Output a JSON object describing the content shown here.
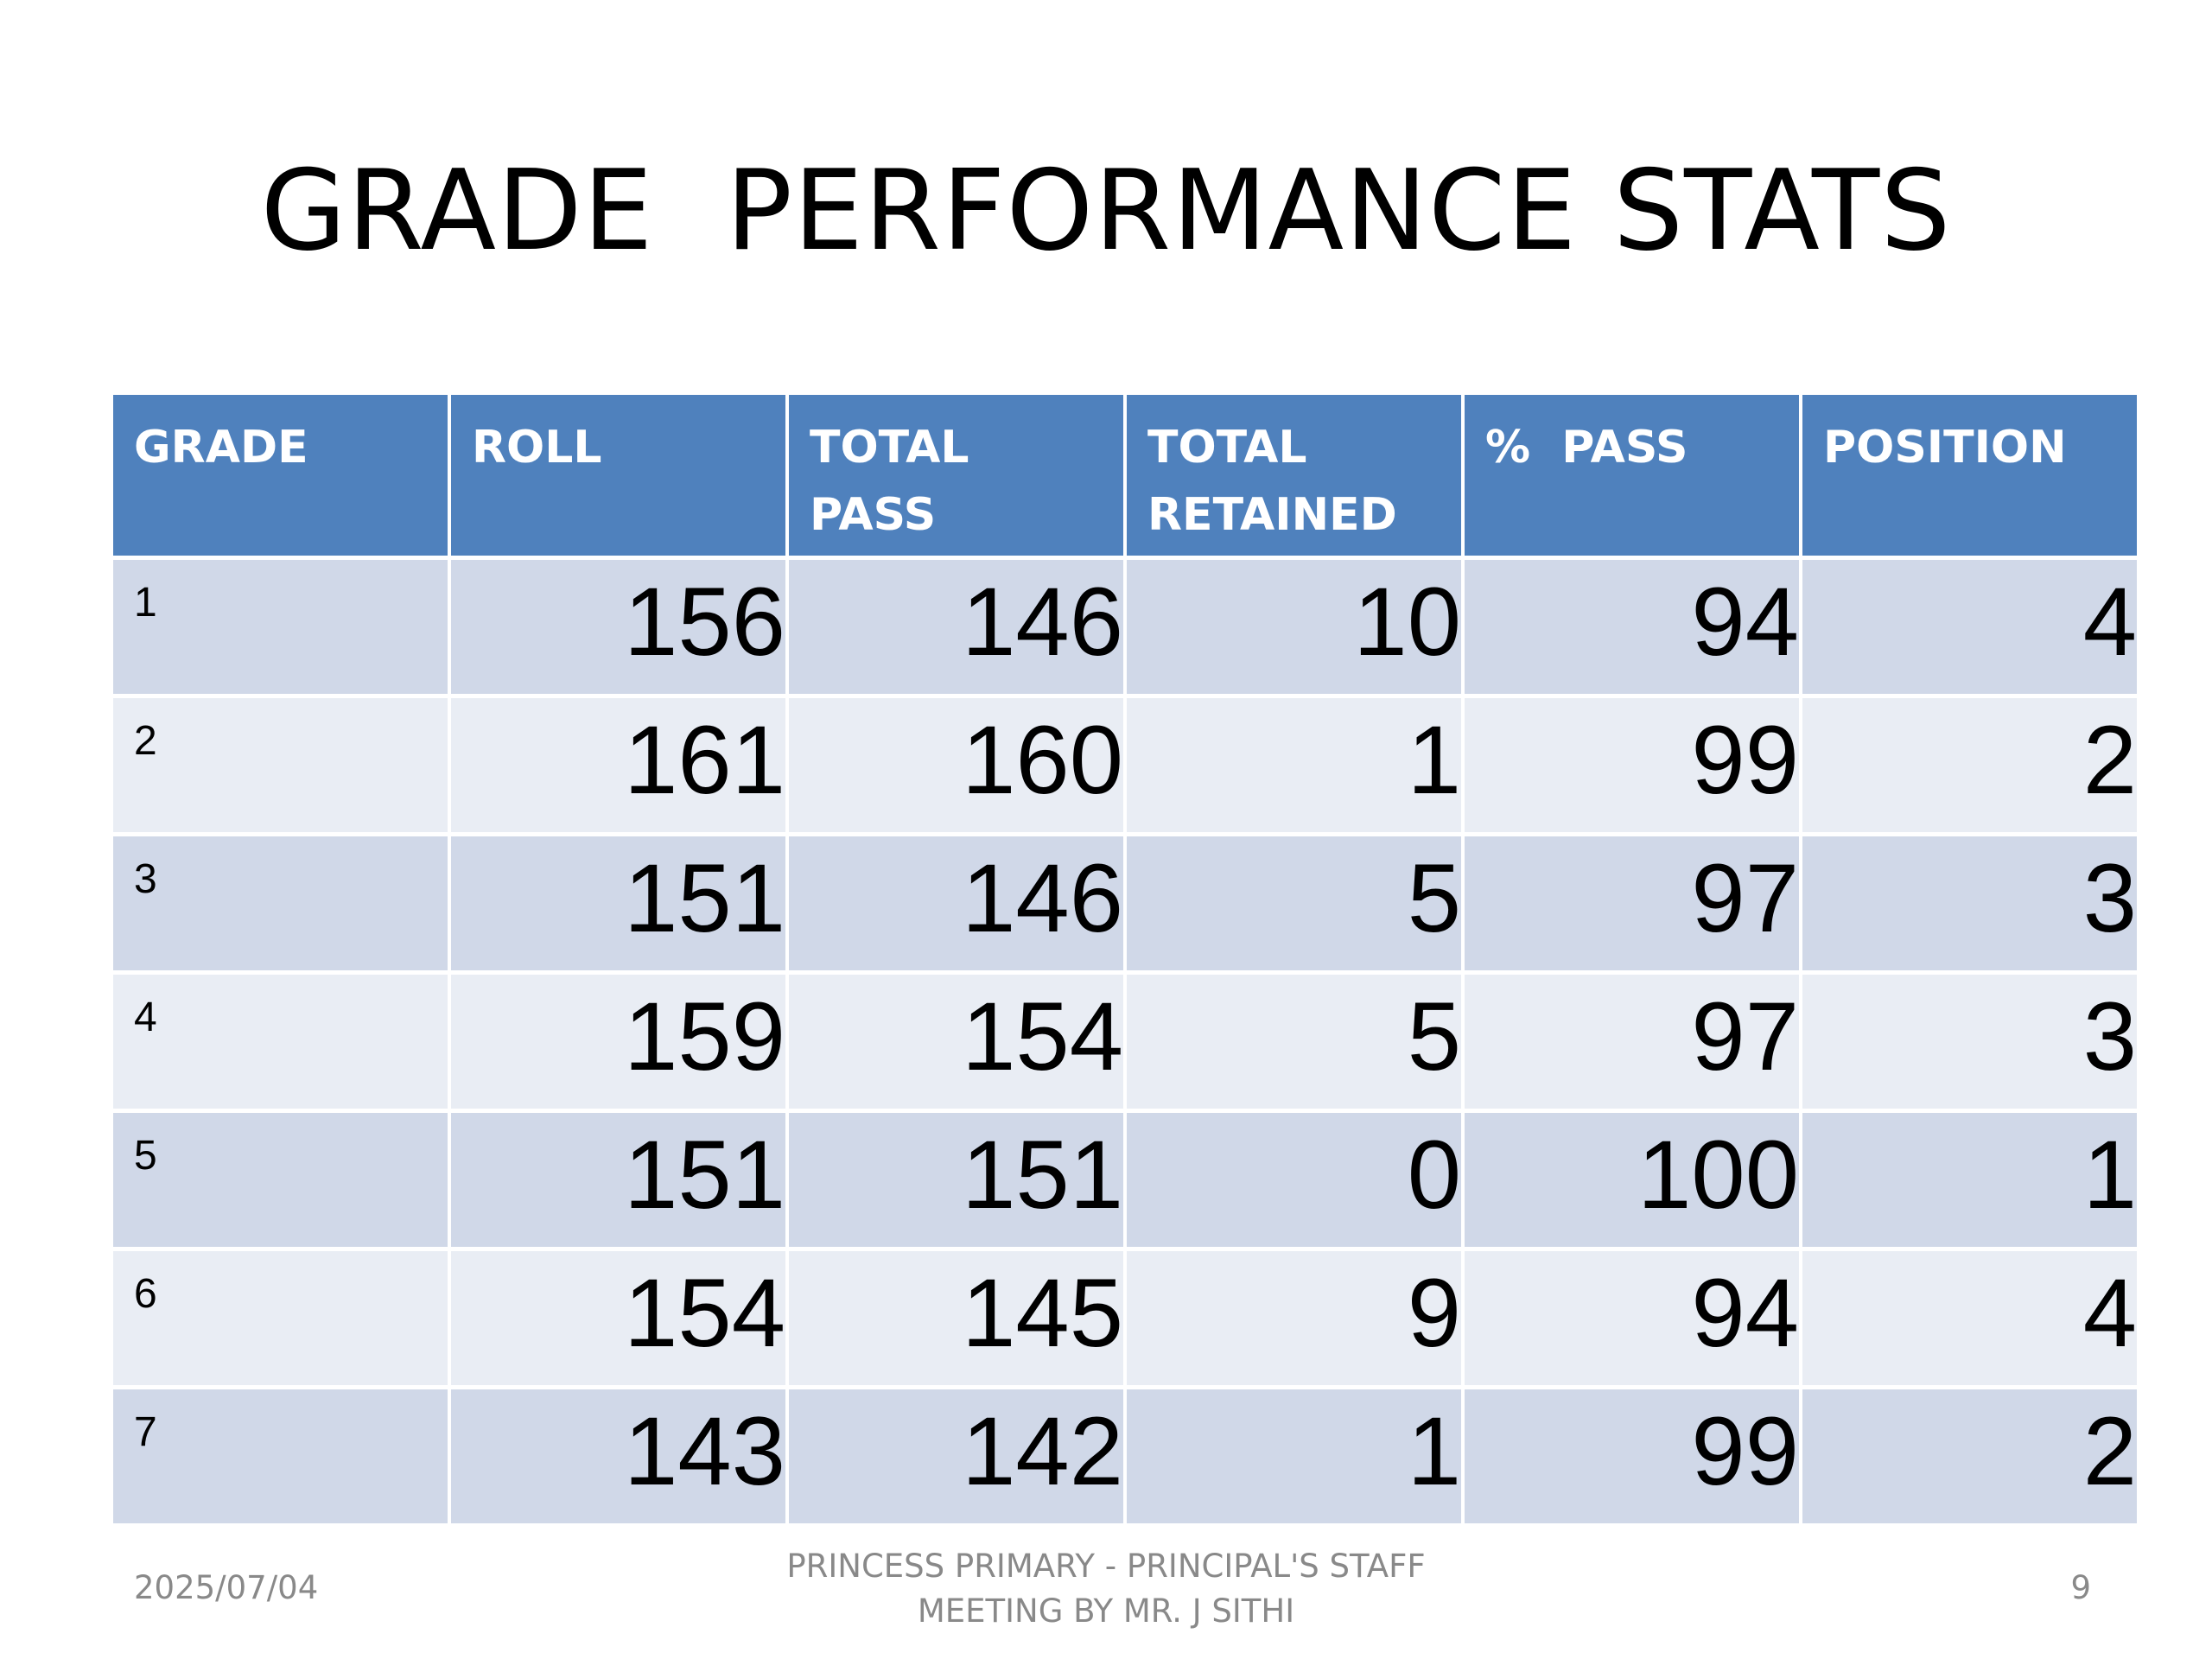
{
  "slide": {
    "title": "GRADE  PERFORMANCE STATS"
  },
  "table": {
    "headers": [
      "GRADE",
      "ROLL",
      "TOTAL PASS",
      "TOTAL RETAINED",
      "%  PASS",
      "POSITION"
    ],
    "rows": [
      {
        "grade": "1",
        "roll": "156",
        "total_pass": "146",
        "total_retained": "10",
        "pct_pass": "94",
        "position": "4"
      },
      {
        "grade": "2",
        "roll": "161",
        "total_pass": "160",
        "total_retained": "1",
        "pct_pass": "99",
        "position": "2"
      },
      {
        "grade": "3",
        "roll": "151",
        "total_pass": "146",
        "total_retained": "5",
        "pct_pass": "97",
        "position": "3"
      },
      {
        "grade": "4",
        "roll": "159",
        "total_pass": "154",
        "total_retained": "5",
        "pct_pass": "97",
        "position": "3"
      },
      {
        "grade": "5",
        "roll": "151",
        "total_pass": "151",
        "total_retained": "0",
        "pct_pass": "100",
        "position": "1"
      },
      {
        "grade": "6",
        "roll": "154",
        "total_pass": "145",
        "total_retained": "9",
        "pct_pass": "94",
        "position": "4"
      },
      {
        "grade": "7",
        "roll": "143",
        "total_pass": "142",
        "total_retained": "1",
        "pct_pass": "99",
        "position": "2"
      }
    ]
  },
  "footer": {
    "date": "2025/07/04",
    "center_line1": "PRINCESS PRIMARY - PRINCIPAL'S STAFF",
    "center_line2": "MEETING BY MR. J SITHI",
    "page_number": "9"
  },
  "colors": {
    "header_bg": "#4f81bd",
    "row_odd_bg": "#d0d8e8",
    "row_even_bg": "#e9edf4",
    "footer_text": "#898989"
  }
}
